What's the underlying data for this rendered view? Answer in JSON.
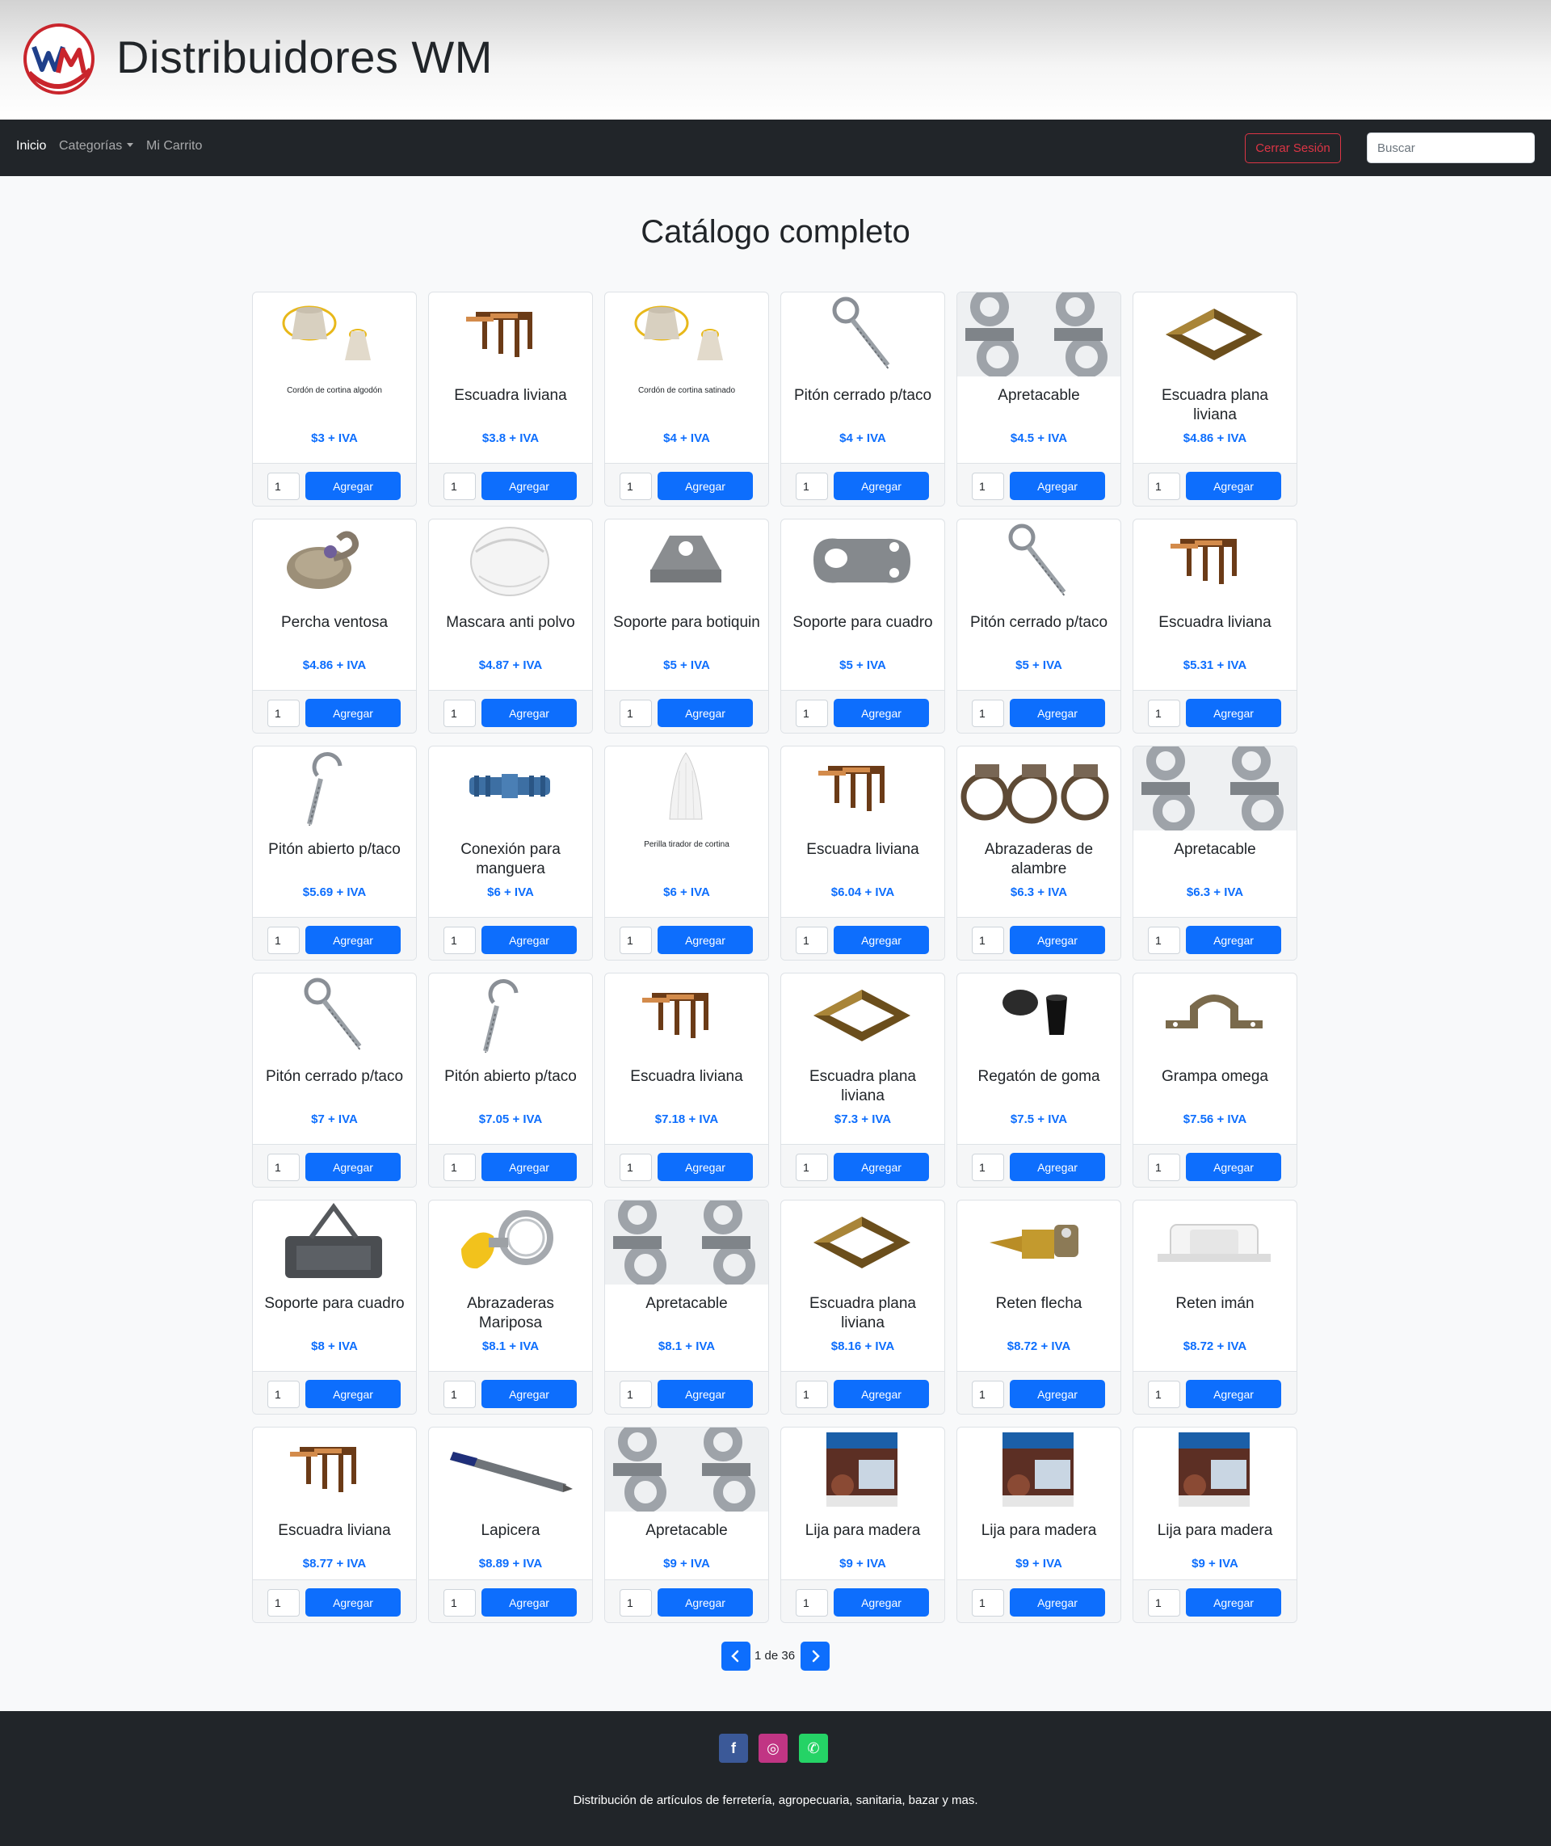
{
  "header": {
    "title": "Distribuidores WM",
    "logo_text": "WM"
  },
  "nav": {
    "inicio": "Inicio",
    "categorias": "Categorías",
    "carrito": "Mi Carrito",
    "logout": "Cerrar Sesión",
    "search_placeholder": "Buscar"
  },
  "page_title": "Catálogo completo",
  "add_label": "Agregar",
  "products": [
    {
      "title": "Cordón de cortina algodón",
      "price": "$3 + IVA",
      "image": "cord-spools",
      "small": true
    },
    {
      "title": "Escuadra liviana",
      "price": "$3.8 + IVA",
      "image": "brackets"
    },
    {
      "title": "Cordón de cortina satinado",
      "price": "$4 + IVA",
      "image": "cord-spools",
      "small": true
    },
    {
      "title": "Pitón cerrado p/taco",
      "price": "$4 + IVA",
      "image": "eye-screw"
    },
    {
      "title": "Apretacable",
      "price": "$4.5 + IVA",
      "image": "wire-clamps"
    },
    {
      "title": "Escuadra plana liviana",
      "price": "$4.86 + IVA",
      "image": "flat-corner"
    },
    {
      "title": "Percha ventosa",
      "price": "$4.86 + IVA",
      "image": "suction-hook"
    },
    {
      "title": "Mascara anti polvo",
      "price": "$4.87 + IVA",
      "image": "dust-mask"
    },
    {
      "title": "Soporte para botiquin",
      "price": "$5 + IVA",
      "image": "plate-hanger"
    },
    {
      "title": "Soporte para cuadro",
      "price": "$5 + IVA",
      "image": "frame-hanger"
    },
    {
      "title": "Pitón cerrado p/taco",
      "price": "$5 + IVA",
      "image": "eye-screw"
    },
    {
      "title": "Escuadra liviana",
      "price": "$5.31 + IVA",
      "image": "brackets"
    },
    {
      "title": "Pitón abierto p/taco",
      "price": "$5.69 + IVA",
      "image": "hook-screw"
    },
    {
      "title": "Conexión para manguera",
      "price": "$6 + IVA",
      "image": "hose-connector"
    },
    {
      "title": "Perilla tirador de cortina",
      "price": "$6 + IVA",
      "image": "curtain-knob",
      "small": true
    },
    {
      "title": "Escuadra liviana",
      "price": "$6.04 + IVA",
      "image": "brackets"
    },
    {
      "title": "Abrazaderas de alambre",
      "price": "$6.3 + IVA",
      "image": "wire-rings"
    },
    {
      "title": "Apretacable",
      "price": "$6.3 + IVA",
      "image": "wire-clamps"
    },
    {
      "title": "Pitón cerrado p/taco",
      "price": "$7 + IVA",
      "image": "eye-screw"
    },
    {
      "title": "Pitón abierto p/taco",
      "price": "$7.05 + IVA",
      "image": "hook-screw"
    },
    {
      "title": "Escuadra liviana",
      "price": "$7.18 + IVA",
      "image": "brackets"
    },
    {
      "title": "Escuadra plana liviana",
      "price": "$7.3 + IVA",
      "image": "flat-corner"
    },
    {
      "title": "Regatón de goma",
      "price": "$7.5 + IVA",
      "image": "rubber-feet"
    },
    {
      "title": "Grampa omega",
      "price": "$7.56 + IVA",
      "image": "omega-clamp"
    },
    {
      "title": "Soporte para cuadro",
      "price": "$8 + IVA",
      "image": "frame-weight"
    },
    {
      "title": "Abrazaderas Mariposa",
      "price": "$8.1 + IVA",
      "image": "butterfly-clamp"
    },
    {
      "title": "Apretacable",
      "price": "$8.1 + IVA",
      "image": "wire-clamps"
    },
    {
      "title": "Escuadra plana liviana",
      "price": "$8.16 + IVA",
      "image": "flat-corner"
    },
    {
      "title": "Reten flecha",
      "price": "$8.72 + IVA",
      "image": "arrow-catch"
    },
    {
      "title": "Reten imán",
      "price": "$8.72 + IVA",
      "image": "magnet-catch"
    },
    {
      "title": "Escuadra liviana",
      "price": "$8.77 + IVA",
      "image": "brackets"
    },
    {
      "title": "Lapicera",
      "price": "$8.89 + IVA",
      "image": "pen"
    },
    {
      "title": "Apretacable",
      "price": "$9 + IVA",
      "image": "wire-clamps"
    },
    {
      "title": "Lija para madera",
      "price": "$9 + IVA",
      "image": "sandpaper"
    },
    {
      "title": "Lija para madera",
      "price": "$9 + IVA",
      "image": "sandpaper"
    },
    {
      "title": "Lija para madera",
      "price": "$9 + IVA",
      "image": "sandpaper"
    }
  ],
  "pagination": {
    "text": "1 de 36",
    "current": 1,
    "total": 36
  },
  "footer": {
    "text": "Distribución de artículos de ferretería, agropecuaria, sanitaria, bazar y mas.",
    "facebook": "f",
    "instagram": "◎",
    "whatsapp": "✆"
  },
  "colors": {
    "primary": "#0d6efd",
    "danger": "#dc3545",
    "dark": "#212529",
    "facebook": "#3b5998",
    "instagram": "#c13584",
    "whatsapp": "#25d366"
  }
}
